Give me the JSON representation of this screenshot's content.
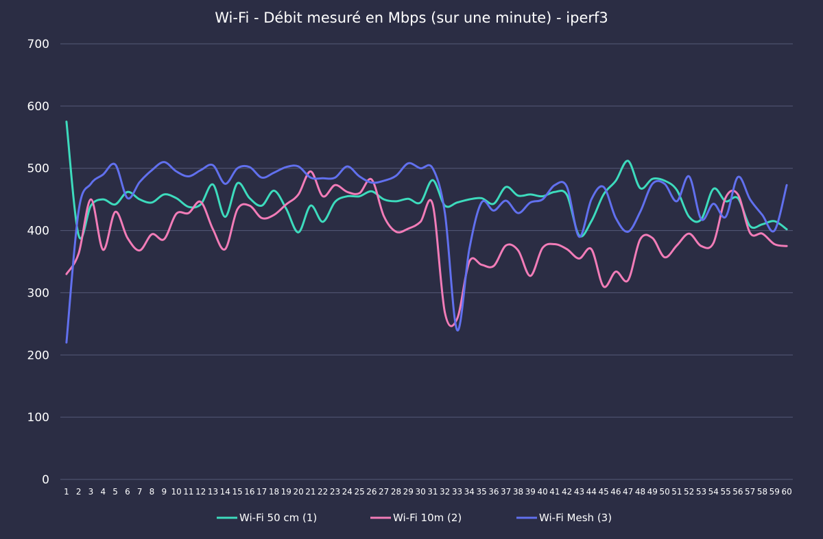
{
  "chart_data": {
    "type": "line",
    "title": "Wi-Fi - Débit mesuré en Mbps (sur une minute) - iperf3",
    "xlabel": "",
    "ylabel": "",
    "ylim": [
      0,
      700
    ],
    "yticks": [
      "0",
      "100",
      "200",
      "300",
      "400",
      "500",
      "600",
      "700"
    ],
    "grid": true,
    "legend": "bottom",
    "categories": [
      "1",
      "2",
      "3",
      "4",
      "5",
      "6",
      "7",
      "8",
      "9",
      "10",
      "11",
      "12",
      "13",
      "14",
      "15",
      "16",
      "17",
      "18",
      "19",
      "20",
      "21",
      "22",
      "23",
      "24",
      "25",
      "26",
      "27",
      "28",
      "29",
      "30",
      "31",
      "32",
      "33",
      "34",
      "35",
      "36",
      "37",
      "38",
      "39",
      "40",
      "41",
      "42",
      "43",
      "44",
      "45",
      "46",
      "47",
      "48",
      "49",
      "50",
      "51",
      "52",
      "53",
      "54",
      "55",
      "56",
      "57",
      "58",
      "59",
      "60"
    ],
    "series": [
      {
        "name": "Wi-Fi 50 cm (1)",
        "color": "#3ddbbd",
        "values": [
          575,
          392,
          440,
          450,
          442,
          462,
          450,
          445,
          458,
          452,
          438,
          442,
          474,
          422,
          476,
          452,
          440,
          464,
          435,
          397,
          440,
          414,
          446,
          455,
          455,
          463,
          450,
          447,
          451,
          445,
          481,
          440,
          445,
          450,
          452,
          443,
          470,
          456,
          458,
          455,
          462,
          457,
          392,
          415,
          458,
          480,
          512,
          468,
          483,
          480,
          465,
          422,
          418,
          467,
          447,
          452,
          407,
          410,
          415,
          402
        ]
      },
      {
        "name": "Wi-Fi 10m (2)",
        "color": "#f27cb8",
        "values": [
          330,
          363,
          450,
          369,
          430,
          388,
          368,
          394,
          386,
          427,
          428,
          446,
          402,
          370,
          434,
          440,
          420,
          425,
          442,
          458,
          495,
          455,
          473,
          462,
          460,
          482,
          423,
          398,
          403,
          414,
          442,
          268,
          258,
          350,
          345,
          343,
          376,
          368,
          327,
          372,
          378,
          370,
          355,
          370,
          310,
          334,
          320,
          386,
          388,
          357,
          376,
          395,
          375,
          380,
          453,
          458,
          396,
          395,
          378,
          375
        ]
      },
      {
        "name": "Wi-Fi Mesh (3)",
        "color": "#6170ee",
        "values": [
          220,
          432,
          475,
          490,
          506,
          452,
          478,
          497,
          510,
          495,
          487,
          497,
          505,
          475,
          500,
          502,
          485,
          493,
          502,
          503,
          485,
          484,
          485,
          503,
          487,
          477,
          480,
          488,
          508,
          500,
          500,
          428,
          240,
          370,
          445,
          432,
          448,
          428,
          445,
          450,
          473,
          470,
          390,
          450,
          470,
          420,
          398,
          430,
          475,
          475,
          447,
          487,
          418,
          443,
          422,
          486,
          450,
          425,
          400,
          473
        ]
      }
    ]
  }
}
